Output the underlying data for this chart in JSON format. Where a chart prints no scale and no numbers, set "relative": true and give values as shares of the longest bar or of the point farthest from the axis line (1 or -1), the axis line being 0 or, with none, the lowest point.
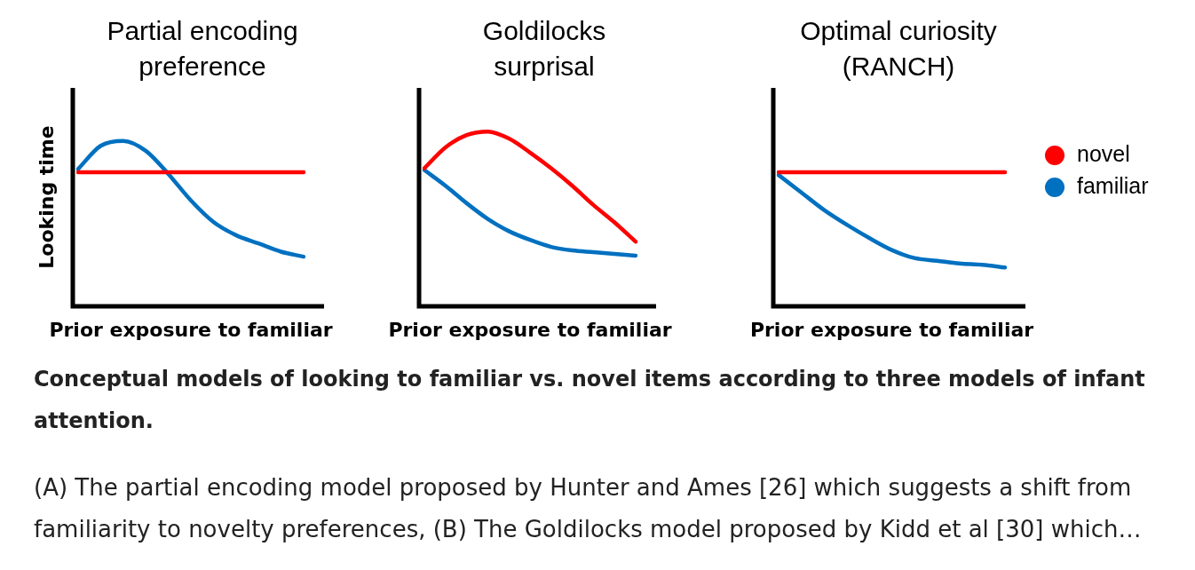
{
  "chart_data": [
    {
      "type": "line",
      "title": "Partial encoding preference",
      "xlabel": "Prior exposure to familiar",
      "ylabel": "Looking time",
      "relative": true,
      "tick_labels": false,
      "categories": [
        null,
        null,
        null,
        null,
        null,
        null,
        null,
        null,
        null,
        null,
        null
      ],
      "series": [
        {
          "color": "#ff0000",
          "values": [
            0.81,
            0.81,
            0.81,
            0.81,
            0.81,
            0.81,
            0.81,
            0.81,
            0.81,
            0.81,
            0.81
          ]
        },
        {
          "color": "#0070c0",
          "values": [
            0.83,
            0.97,
            1.0,
            0.94,
            0.8,
            0.64,
            0.51,
            0.43,
            0.38,
            0.33,
            0.3
          ]
        }
      ]
    },
    {
      "type": "line",
      "title": "Goldilocks surprisal",
      "xlabel": "Prior exposure to familiar",
      "relative": true,
      "tick_labels": false,
      "categories": [
        null,
        null,
        null,
        null,
        null,
        null,
        null,
        null,
        null,
        null,
        null
      ],
      "series": [
        {
          "color": "#ff0000",
          "values": [
            0.79,
            0.91,
            0.98,
            1.0,
            0.96,
            0.88,
            0.79,
            0.69,
            0.58,
            0.48,
            0.37
          ]
        },
        {
          "color": "#0070c0",
          "values": [
            0.78,
            0.69,
            0.59,
            0.5,
            0.43,
            0.38,
            0.34,
            0.32,
            0.31,
            0.3,
            0.29
          ]
        }
      ]
    },
    {
      "type": "line",
      "title": "Optimal curiosity (RANCH)",
      "xlabel": "Prior exposure to familiar",
      "relative": true,
      "tick_labels": false,
      "legend": "right",
      "categories": [
        null,
        null,
        null,
        null,
        null,
        null,
        null,
        null,
        null,
        null,
        null
      ],
      "series": [
        {
          "name": "novel",
          "color": "#ff0000",
          "values": [
            1.0,
            1.0,
            1.0,
            1.0,
            1.0,
            1.0,
            1.0,
            1.0,
            1.0,
            1.0,
            1.0
          ]
        },
        {
          "name": "familiar",
          "color": "#0070c0",
          "values": [
            0.98,
            0.85,
            0.72,
            0.61,
            0.51,
            0.42,
            0.36,
            0.34,
            0.32,
            0.31,
            0.29
          ]
        }
      ]
    },
    {
      "type": "other",
      "title": "Conceptual models of looking to familiar vs. novel items according to three models of infant attention.",
      "annotations": [
        "(A) The partial encoding model proposed by Hunter and Ames [26] which suggests a shift from familiarity to novelty preferences, (B) The Goldilocks model proposed by Kidd et al [30] which…"
      ]
    }
  ]
}
